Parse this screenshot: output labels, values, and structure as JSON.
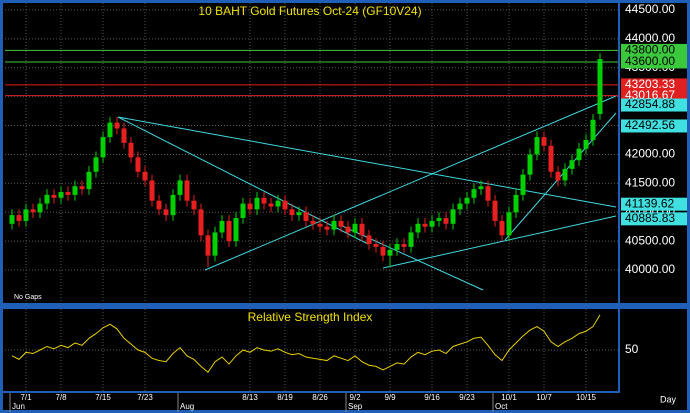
{
  "chart_data": {
    "type": "candlestick",
    "title": "10 BAHT Gold Futures Oct-24 (GF10V24)",
    "note": "No Gaps",
    "categories": [
      null,
      null,
      "7/1",
      null,
      null,
      null,
      null,
      "7/8",
      null,
      null,
      null,
      null,
      null,
      "7/15",
      null,
      null,
      null,
      null,
      null,
      "7/23",
      null,
      null,
      null,
      null,
      null,
      null,
      null,
      null,
      null,
      null,
      null,
      null,
      null,
      null,
      "8/13",
      null,
      null,
      null,
      null,
      "8/19",
      null,
      null,
      null,
      null,
      "8/26",
      null,
      null,
      null,
      null,
      "9/2",
      null,
      null,
      null,
      null,
      "9/9",
      null,
      null,
      null,
      null,
      null,
      "9/16",
      null,
      null,
      null,
      null,
      "9/23",
      null,
      null,
      null,
      null,
      null,
      "10/1",
      null,
      null,
      null,
      null,
      "10/7",
      null,
      null,
      null,
      null,
      null,
      "10/15",
      null,
      null
    ],
    "months": [
      "Jun",
      null,
      null,
      null,
      null,
      null,
      null,
      null,
      null,
      null,
      null,
      null,
      null,
      null,
      null,
      null,
      null,
      null,
      null,
      null,
      null,
      null,
      null,
      null,
      "Aug",
      null,
      null,
      null,
      null,
      null,
      null,
      null,
      null,
      null,
      null,
      null,
      null,
      null,
      null,
      null,
      null,
      null,
      null,
      null,
      null,
      null,
      null,
      null,
      "Sep",
      null,
      null,
      null,
      null,
      null,
      null,
      null,
      null,
      null,
      null,
      null,
      null,
      null,
      null,
      null,
      null,
      null,
      null,
      null,
      null,
      "Oct",
      null,
      null,
      null,
      null,
      null,
      null,
      null,
      null,
      null,
      null,
      null,
      null,
      null
    ],
    "open": [
      40800,
      40950,
      40850,
      41050,
      41000,
      41150,
      41300,
      41250,
      41350,
      41300,
      41450,
      41400,
      41700,
      41950,
      42300,
      42550,
      42450,
      42200,
      41950,
      41700,
      41550,
      41200,
      41050,
      40950,
      41300,
      41550,
      41200,
      41050,
      40600,
      40250,
      40650,
      40850,
      40500,
      40900,
      41150,
      41050,
      41250,
      41150,
      41100,
      41200,
      41050,
      40950,
      41000,
      40850,
      40800,
      40750,
      40700,
      40850,
      40750,
      40650,
      40800,
      40600,
      40450,
      40400,
      40250,
      40350,
      40450,
      40400,
      40650,
      40800,
      40750,
      40850,
      40900,
      40800,
      41050,
      41150,
      41250,
      41400,
      41450,
      41200,
      40850,
      40600,
      41000,
      41300,
      41650,
      42000,
      42300,
      42150,
      41700,
      41550,
      41750,
      41900,
      42100,
      42250,
      42700
    ],
    "high": [
      41050,
      41050,
      41150,
      41150,
      41250,
      41400,
      41400,
      41450,
      41450,
      41550,
      41550,
      41800,
      42050,
      42400,
      42650,
      42650,
      42550,
      42300,
      42050,
      41800,
      41650,
      41300,
      41150,
      41400,
      41650,
      41650,
      41300,
      41150,
      40700,
      40750,
      40950,
      40950,
      41000,
      41250,
      41250,
      41350,
      41350,
      41250,
      41300,
      41300,
      41150,
      41100,
      41100,
      40950,
      40900,
      40850,
      40950,
      40950,
      40850,
      40900,
      40900,
      40700,
      40550,
      40500,
      40450,
      40550,
      40550,
      40750,
      40900,
      40900,
      40950,
      41000,
      41000,
      41150,
      41250,
      41350,
      41500,
      41550,
      41550,
      41300,
      40950,
      41100,
      41400,
      41750,
      42100,
      42400,
      42400,
      42250,
      41800,
      41850,
      42000,
      42200,
      42350,
      42700,
      43750
    ],
    "low": [
      40700,
      40750,
      40750,
      40900,
      40900,
      41050,
      41150,
      41150,
      41200,
      41200,
      41300,
      41300,
      41600,
      41850,
      42200,
      42350,
      42100,
      41850,
      41600,
      41450,
      41100,
      40950,
      40850,
      40850,
      41200,
      41100,
      40950,
      40500,
      40050,
      40150,
      40550,
      40400,
      40400,
      40800,
      40950,
      40950,
      41050,
      41000,
      41000,
      40950,
      40850,
      40850,
      40750,
      40700,
      40650,
      40600,
      40600,
      40650,
      40550,
      40550,
      40500,
      40350,
      40300,
      40150,
      40050,
      40250,
      40300,
      40300,
      40550,
      40650,
      40650,
      40750,
      40700,
      40700,
      40950,
      41050,
      41150,
      41300,
      41100,
      40750,
      40500,
      40500,
      40900,
      41200,
      41550,
      41900,
      42050,
      41600,
      41450,
      41450,
      41650,
      41800,
      42000,
      42150,
      42600
    ],
    "close": [
      40950,
      40850,
      41050,
      41000,
      41150,
      41300,
      41250,
      41350,
      41300,
      41450,
      41400,
      41700,
      41950,
      42300,
      42550,
      42450,
      42200,
      41950,
      41700,
      41550,
      41200,
      41050,
      40950,
      41300,
      41550,
      41200,
      41050,
      40600,
      40250,
      40650,
      40850,
      40500,
      40900,
      41150,
      41050,
      41250,
      41150,
      41100,
      41200,
      41050,
      40950,
      41000,
      40850,
      40800,
      40750,
      40700,
      40850,
      40750,
      40650,
      40800,
      40600,
      40450,
      40400,
      40250,
      40350,
      40450,
      40400,
      40650,
      40800,
      40750,
      40850,
      40900,
      40800,
      41050,
      41150,
      41250,
      41400,
      41450,
      41200,
      40850,
      40600,
      41000,
      41300,
      41650,
      42000,
      42300,
      42150,
      41700,
      41550,
      41750,
      41900,
      42100,
      42250,
      42600,
      43650
    ],
    "up_color": "#00d000",
    "down_color": "#e82020",
    "ylim": [
      39430,
      44620
    ],
    "yticks": [
      {
        "value": 40000,
        "label": "40000.00"
      },
      {
        "value": 40500,
        "label": "40500.00"
      },
      {
        "value": 41000,
        "label": "41000.00"
      },
      {
        "value": 41500,
        "label": "41500.00"
      },
      {
        "value": 42000,
        "label": "42000.00"
      },
      {
        "value": 42500,
        "label": "42500.00"
      },
      {
        "value": 43000,
        "label": "43000.00"
      },
      {
        "value": 43500,
        "label": "43500.00"
      },
      {
        "value": 44000,
        "label": "44000.00"
      },
      {
        "value": 44500,
        "label": "44500.00"
      }
    ],
    "levels": [
      {
        "value": 43800,
        "label": "43800.00",
        "color": "#3cc83c",
        "line": true
      },
      {
        "value": 43600,
        "label": "43600.00",
        "color": "#3cc83c",
        "line": true
      },
      {
        "value": 43203.33,
        "label": "43203.33",
        "color": "#e02020",
        "line": true
      },
      {
        "value": 43016.67,
        "label": "43016.67",
        "color": "#e02020",
        "line": true
      },
      {
        "value": 42854.88,
        "label": "42854.88",
        "color": "#40e0e0",
        "line": false
      },
      {
        "value": 42492.56,
        "label": "42492.56",
        "color": "#40e0e0",
        "line": false
      },
      {
        "value": 41139.62,
        "label": "41139.62",
        "color": "#40e0e0",
        "line": false
      },
      {
        "value": 40885.83,
        "label": "40885.83",
        "color": "#40e0e0",
        "line": false
      }
    ],
    "grid": true,
    "x_unit": "Day",
    "rsi": {
      "title": "Relative Strength Index",
      "color": "#e8d000",
      "values": [
        45,
        42,
        48,
        47,
        50,
        53,
        51,
        54,
        52,
        56,
        54,
        60,
        64,
        69,
        72,
        68,
        60,
        55,
        50,
        48,
        43,
        41,
        40,
        47,
        52,
        45,
        42,
        36,
        31,
        40,
        44,
        38,
        45,
        50,
        48,
        52,
        50,
        49,
        51,
        48,
        46,
        47,
        44,
        43,
        42,
        41,
        45,
        43,
        41,
        45,
        40,
        37,
        36,
        33,
        36,
        39,
        38,
        44,
        48,
        46,
        49,
        50,
        47,
        53,
        55,
        57,
        60,
        61,
        54,
        46,
        41,
        50,
        56,
        62,
        67,
        70,
        66,
        57,
        53,
        57,
        60,
        64,
        66,
        70,
        80
      ],
      "ylim": [
        15,
        85
      ],
      "yticks": [
        50
      ]
    }
  }
}
